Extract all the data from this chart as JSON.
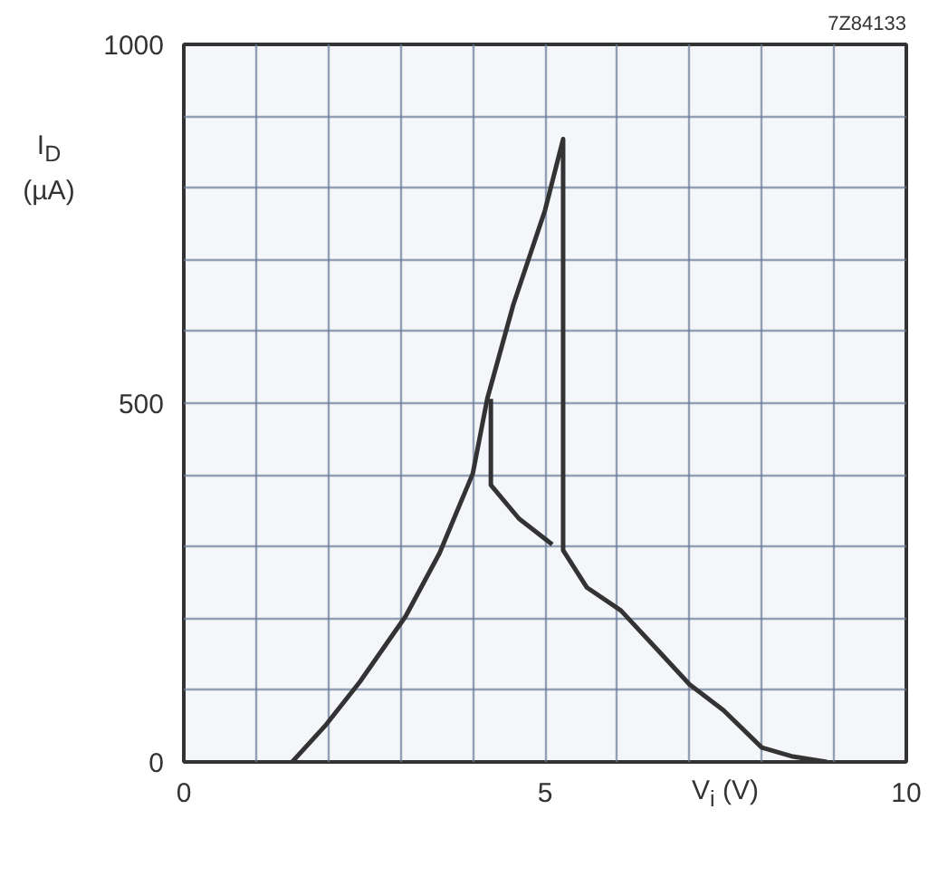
{
  "chart_data": {
    "type": "line",
    "xlabel": "V$_{i}$ (V)",
    "ylabel": "I$_{D}$ (µA)",
    "annotations": [
      "7Z84133"
    ],
    "xlim": [
      0,
      10
    ],
    "ylim": [
      0,
      1000
    ],
    "xticks": [
      0,
      {
        "value": 1,
        "label": null
      },
      {
        "value": 2,
        "label": null
      },
      {
        "value": 3,
        "label": null
      },
      {
        "value": 4,
        "label": null
      },
      5,
      {
        "value": 6,
        "label": null
      },
      {
        "value": 7,
        "label": null
      },
      {
        "value": 8,
        "label": null
      },
      {
        "value": 9,
        "label": null
      },
      10
    ],
    "yticks": [
      0,
      {
        "value": 100,
        "label": null
      },
      {
        "value": 200,
        "label": null
      },
      {
        "value": 300,
        "label": null
      },
      {
        "value": 400,
        "label": null
      },
      500,
      {
        "value": 600,
        "label": null
      },
      {
        "value": 700,
        "label": null
      },
      {
        "value": 800,
        "label": null
      },
      {
        "value": 900,
        "label": null
      },
      1000
    ],
    "grid": true,
    "series": [
      {
        "color": "#333333",
        "x": [
          1.5,
          1.97,
          2.44,
          3.07,
          3.54,
          4.0,
          4.2,
          4.56,
          5.0,
          5.25,
          5.25,
          5.58,
          6.05,
          6.53,
          7.0,
          7.47,
          8.0,
          8.41,
          8.9
        ],
        "values": [
          0,
          52,
          112,
          203,
          291,
          402,
          506,
          637,
          769,
          868,
          295,
          243,
          211,
          159,
          108,
          72,
          20,
          8,
          0
        ]
      },
      {
        "color": "#333333",
        "x": [
          5.1,
          4.64,
          4.25,
          4.25
        ],
        "values": [
          303,
          339,
          386,
          506
        ]
      }
    ]
  }
}
